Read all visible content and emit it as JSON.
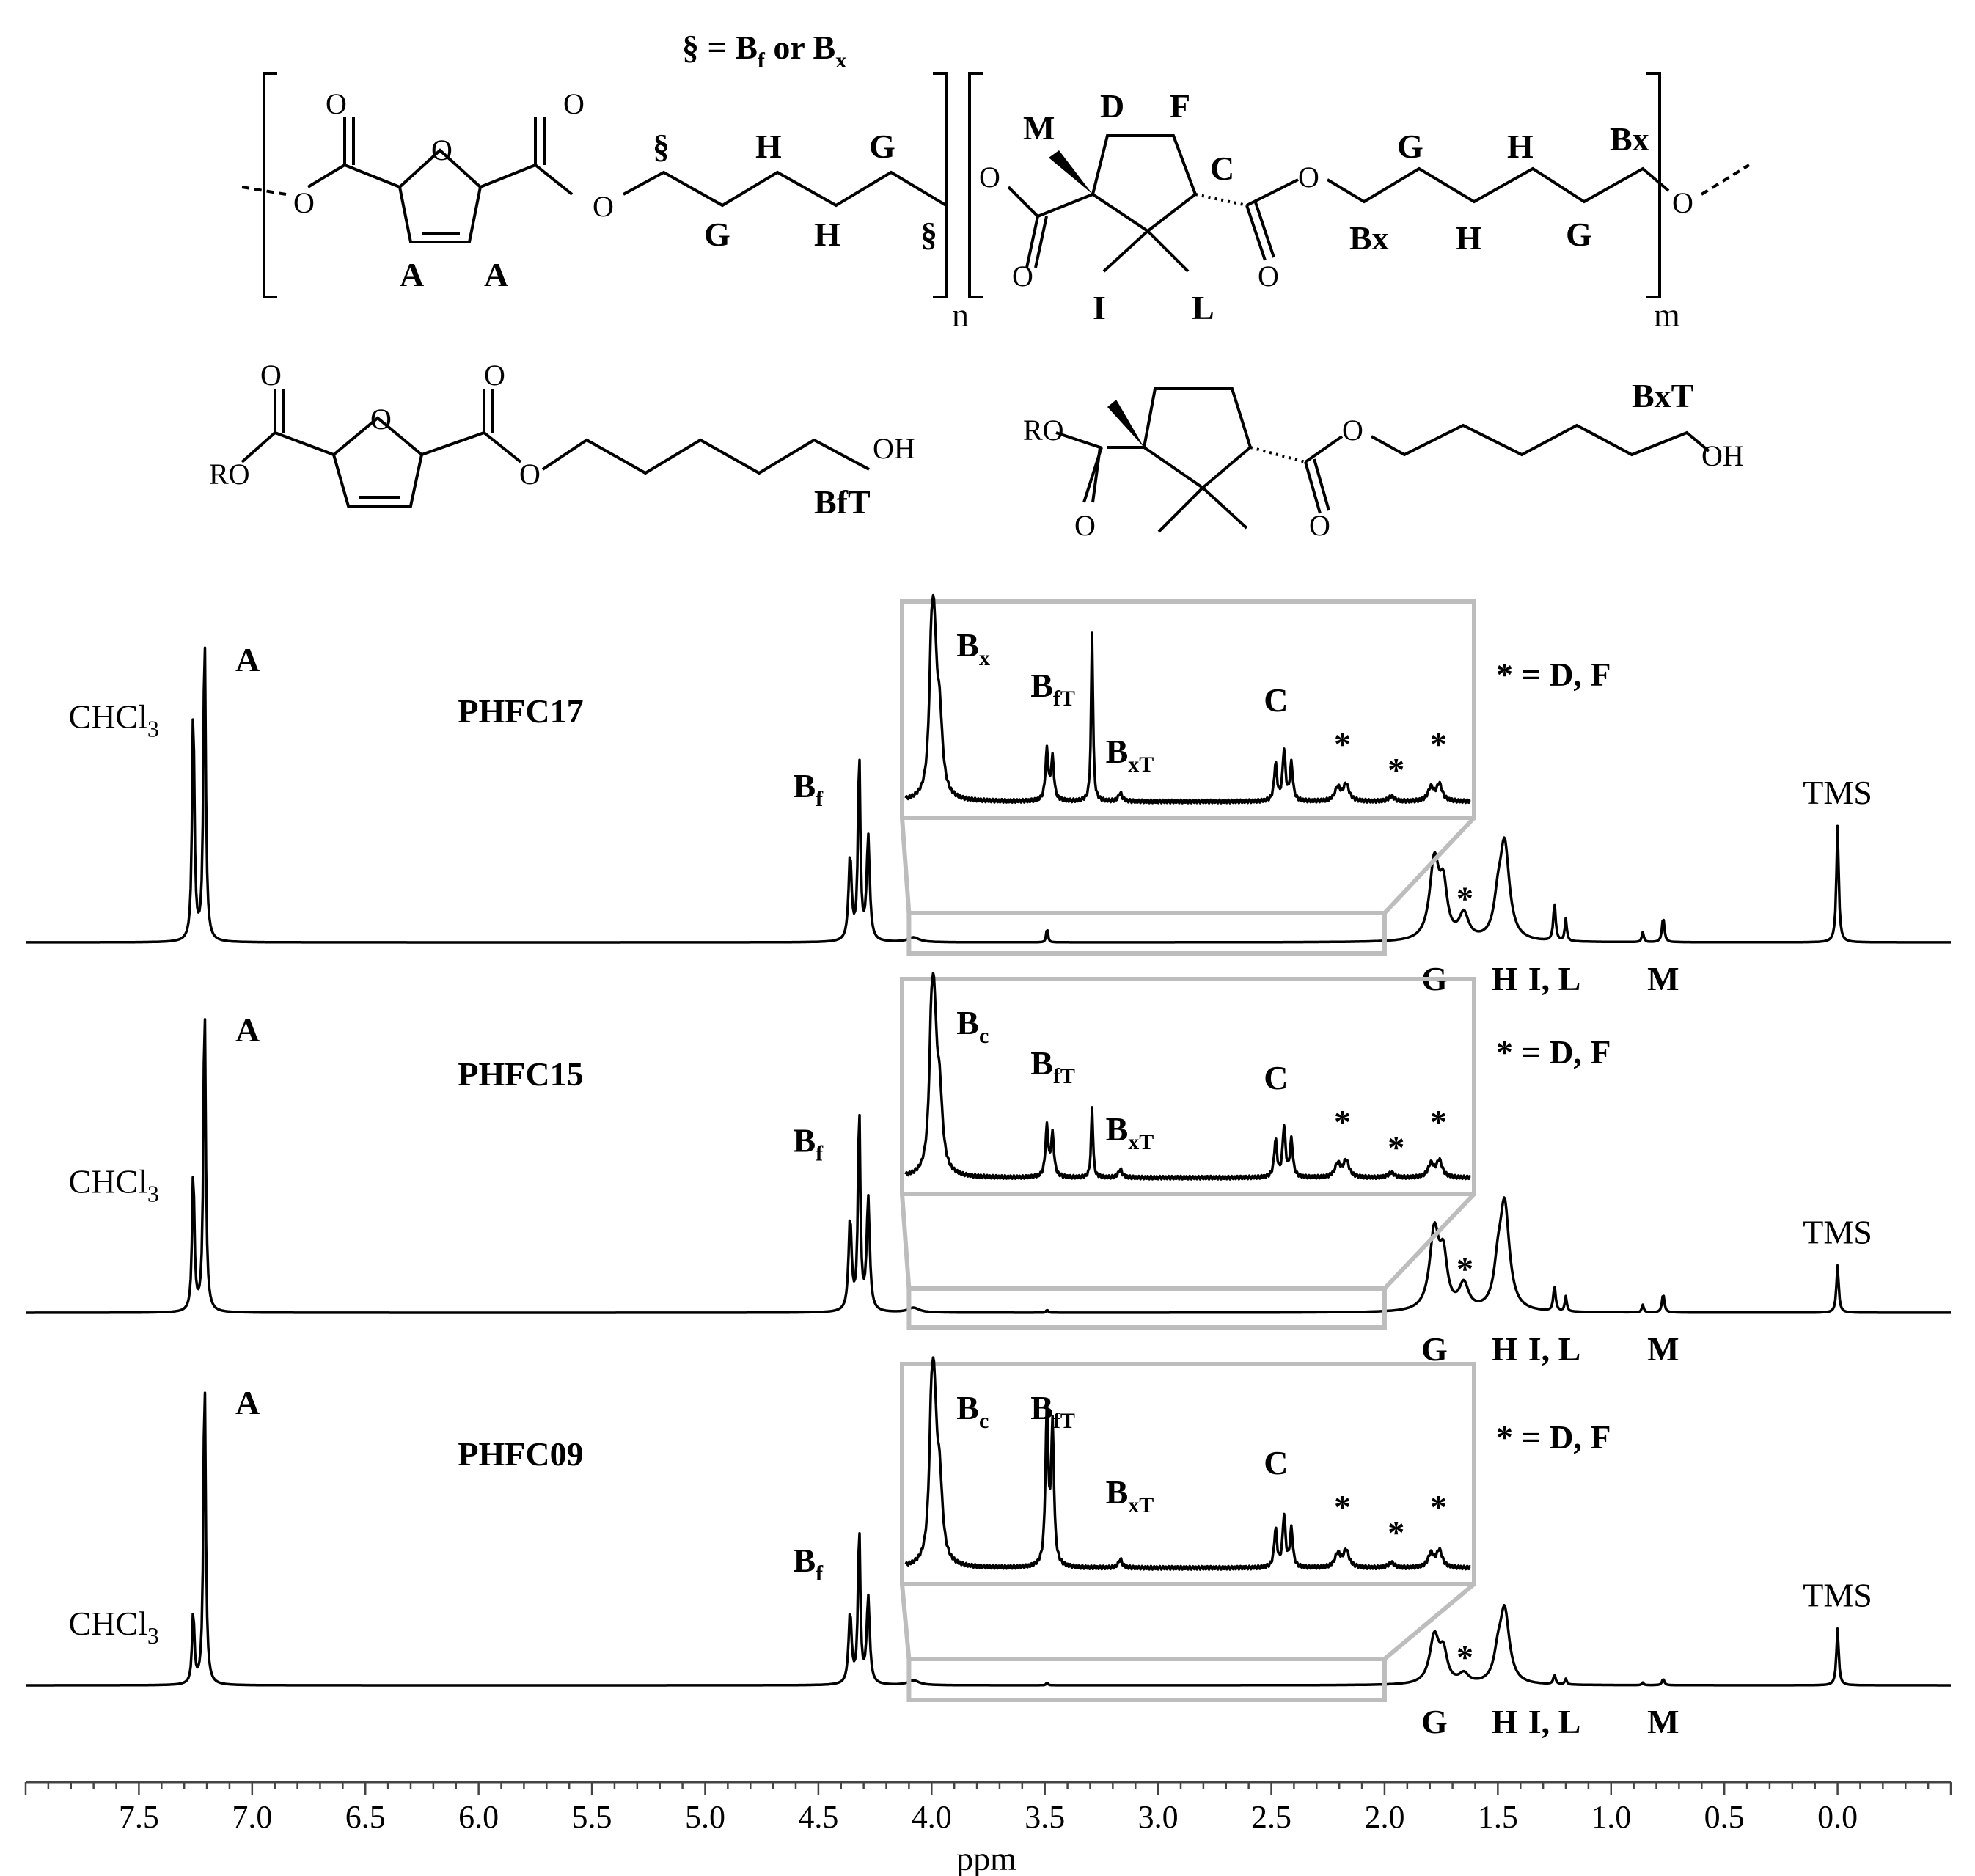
{
  "structure": {
    "legend_eq": "§ = Bf or Bx",
    "labels": [
      "A",
      "A",
      "G",
      "H",
      "§",
      "§",
      "H",
      "G",
      "M",
      "D",
      "F",
      "C",
      "I",
      "L",
      "G",
      "H",
      "Bx",
      "Bx",
      "H",
      "G",
      "n",
      "m",
      "BfT",
      "BxT"
    ],
    "atoms": [
      "O",
      "O",
      "O",
      "O",
      "O",
      "O",
      "O",
      "O",
      "O",
      "O",
      "RO",
      "OH",
      "RO",
      "OH"
    ]
  },
  "chart_data": {
    "type": "line",
    "xlabel": "ppm",
    "xlim": [
      8.0,
      -0.5
    ],
    "x_reversed": true,
    "x_ticks": [
      "7.5",
      "7.0",
      "6.5",
      "6.0",
      "5.5",
      "5.0",
      "4.5",
      "4.0",
      "3.5",
      "3.0",
      "2.5",
      "2.0",
      "1.5",
      "1.0",
      "0.5",
      "0.0"
    ],
    "series": [
      {
        "name": "PHFC17",
        "color": "#d9534f",
        "peaks": [
          {
            "ppm": 7.26,
            "height": 0.75,
            "label": "CHCl3"
          },
          {
            "ppm": 7.21,
            "height": 1.0,
            "label": "A"
          },
          {
            "ppm": 4.32,
            "height": 0.6,
            "label": "Bf"
          },
          {
            "ppm": 1.78,
            "height": 0.25,
            "label": "G"
          },
          {
            "ppm": 1.65,
            "height": 0.08,
            "label": "*"
          },
          {
            "ppm": 1.47,
            "height": 0.3,
            "label": "H"
          },
          {
            "ppm": 1.25,
            "height": 0.12,
            "label": "I, L"
          },
          {
            "ppm": 0.77,
            "height": 0.08,
            "label": "M"
          },
          {
            "ppm": 0.0,
            "height": 0.37,
            "label": "TMS"
          }
        ],
        "inset": {
          "range": [
            4.1,
            2.0
          ],
          "labels": [
            "Bx",
            "BfT",
            "BxT",
            "C",
            "*",
            "*",
            "*"
          ],
          "note": "* = D, F"
        }
      },
      {
        "name": "PHFC15",
        "color": "#f07f2a",
        "peaks": [
          {
            "ppm": 7.26,
            "height": 0.45,
            "label": "CHCl3"
          },
          {
            "ppm": 7.21,
            "height": 1.0,
            "label": "A"
          },
          {
            "ppm": 4.32,
            "height": 0.65,
            "label": "Bf"
          },
          {
            "ppm": 1.78,
            "height": 0.25,
            "label": "G"
          },
          {
            "ppm": 1.65,
            "height": 0.08,
            "label": "*"
          },
          {
            "ppm": 1.47,
            "height": 0.33,
            "label": "H"
          },
          {
            "ppm": 1.25,
            "height": 0.08,
            "label": "I, L"
          },
          {
            "ppm": 0.77,
            "height": 0.06,
            "label": "M"
          },
          {
            "ppm": 0.0,
            "height": 0.15,
            "label": "TMS"
          }
        ],
        "inset": {
          "range": [
            4.1,
            2.0
          ],
          "labels": [
            "Bc",
            "BfT",
            "BxT",
            "C",
            "*",
            "*",
            "*"
          ],
          "note": "* = D, F"
        }
      },
      {
        "name": "PHFC09",
        "color": "#7a9a3a",
        "peaks": [
          {
            "ppm": 7.26,
            "height": 0.23,
            "label": "CHCl3"
          },
          {
            "ppm": 7.21,
            "height": 1.0,
            "label": "A"
          },
          {
            "ppm": 4.32,
            "height": 0.5,
            "label": "Bf"
          },
          {
            "ppm": 1.78,
            "height": 0.15,
            "label": "G"
          },
          {
            "ppm": 1.65,
            "height": 0.03,
            "label": "*"
          },
          {
            "ppm": 1.47,
            "height": 0.23,
            "label": "H"
          },
          {
            "ppm": 1.25,
            "height": 0.03,
            "label": "I, L"
          },
          {
            "ppm": 0.77,
            "height": 0.02,
            "label": "M"
          },
          {
            "ppm": 0.0,
            "height": 0.18,
            "label": "TMS"
          }
        ],
        "inset": {
          "range": [
            4.1,
            2.0
          ],
          "labels": [
            "Bc",
            "BfT",
            "BxT",
            "C",
            "*",
            "*",
            "*"
          ],
          "note": "* = D, F"
        }
      }
    ]
  }
}
